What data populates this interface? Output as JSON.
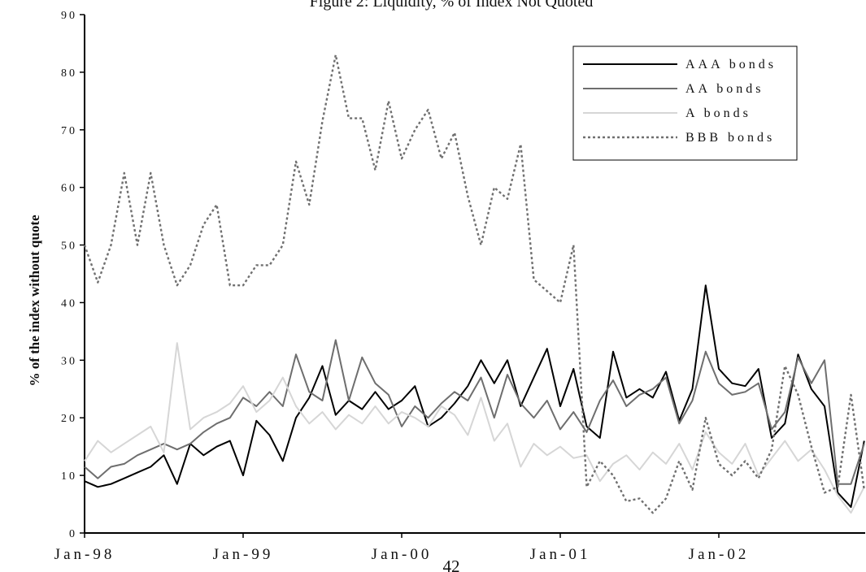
{
  "page_number": "42",
  "colors": {
    "axis": "#000000",
    "aaa": "#000000",
    "aa": "#6e6e6e",
    "a": "#d6d6d6",
    "bbb": "#707070"
  },
  "chart_data": {
    "type": "line",
    "title": "Figure 2: Liquidity, % of Index Not Quoted",
    "ylabel": "% of the index without quote",
    "xlabel": "",
    "ylim": [
      0,
      90
    ],
    "yticks": [
      "0",
      "10",
      "20",
      "30",
      "40",
      "50",
      "60",
      "70",
      "80",
      "90"
    ],
    "x_ticks": [
      "Jan-98",
      "Jan-99",
      "Jan-00",
      "Jan-01",
      "Jan-02"
    ],
    "x_range": [
      "Jan-98",
      "Dec-02"
    ],
    "grid": false,
    "legend_position": "top-right",
    "series": [
      {
        "name": "AAA bonds",
        "style": "solid",
        "points": [
          [
            "Jan-98",
            9
          ],
          [
            "Feb-98",
            8
          ],
          [
            "Mar-98",
            8.5
          ],
          [
            "Apr-98",
            9.5
          ],
          [
            "May-98",
            10.5
          ],
          [
            "Jun-98",
            11.5
          ],
          [
            "Jul-98",
            13.5
          ],
          [
            "Aug-98",
            8.5
          ],
          [
            "Sep-98",
            15.5
          ],
          [
            "Oct-98",
            13.5
          ],
          [
            "Nov-98",
            15
          ],
          [
            "Dec-98",
            16
          ],
          [
            "Jan-99",
            10
          ],
          [
            "Feb-99",
            19.5
          ],
          [
            "Mar-99",
            17
          ],
          [
            "Apr-99",
            12.5
          ],
          [
            "May-99",
            20
          ],
          [
            "Jun-99",
            23.5
          ],
          [
            "Jul-99",
            29
          ],
          [
            "Aug-99",
            20.5
          ],
          [
            "Sep-99",
            23
          ],
          [
            "Oct-99",
            21.5
          ],
          [
            "Nov-99",
            24.5
          ],
          [
            "Dec-99",
            21.5
          ],
          [
            "Jan-00",
            23
          ],
          [
            "Feb-00",
            25.5
          ],
          [
            "Mar-00",
            18.5
          ],
          [
            "Apr-00",
            20
          ],
          [
            "May-00",
            22.5
          ],
          [
            "Jun-00",
            25.5
          ],
          [
            "Jul-00",
            30
          ],
          [
            "Aug-00",
            26
          ],
          [
            "Sep-00",
            30
          ],
          [
            "Oct-00",
            22
          ],
          [
            "Nov-00",
            27
          ],
          [
            "Dec-00",
            32
          ],
          [
            "Jan-01",
            22
          ],
          [
            "Feb-01",
            28.5
          ],
          [
            "Mar-01",
            18.5
          ],
          [
            "Apr-01",
            16.5
          ],
          [
            "May-01",
            31.5
          ],
          [
            "Jun-01",
            23.5
          ],
          [
            "Jul-01",
            25
          ],
          [
            "Aug-01",
            23.5
          ],
          [
            "Sep-01",
            28
          ],
          [
            "Oct-01",
            19.5
          ],
          [
            "Nov-01",
            25
          ],
          [
            "Dec-01",
            43
          ],
          [
            "Jan-02",
            28.5
          ],
          [
            "Feb-02",
            26
          ],
          [
            "Mar-02",
            25.5
          ],
          [
            "Apr-02",
            28.5
          ],
          [
            "May-02",
            16.5
          ],
          [
            "Jun-02",
            19
          ],
          [
            "Jul-02",
            31
          ],
          [
            "Aug-02",
            25
          ],
          [
            "Sep-02",
            22
          ],
          [
            "Oct-02",
            7
          ],
          [
            "Nov-02",
            4.5
          ],
          [
            "Dec-02",
            16
          ]
        ]
      },
      {
        "name": "AA bonds",
        "style": "solid",
        "points": [
          [
            "Jan-98",
            11.5
          ],
          [
            "Feb-98",
            9.5
          ],
          [
            "Mar-98",
            11.5
          ],
          [
            "Apr-98",
            12
          ],
          [
            "May-98",
            13.5
          ],
          [
            "Jun-98",
            14.5
          ],
          [
            "Jul-98",
            15.5
          ],
          [
            "Aug-98",
            14.5
          ],
          [
            "Sep-98",
            15.5
          ],
          [
            "Oct-98",
            17.5
          ],
          [
            "Nov-98",
            19
          ],
          [
            "Dec-98",
            20
          ],
          [
            "Jan-99",
            23.5
          ],
          [
            "Feb-99",
            22
          ],
          [
            "Mar-99",
            24.5
          ],
          [
            "Apr-99",
            22
          ],
          [
            "May-99",
            31
          ],
          [
            "Jun-99",
            24.5
          ],
          [
            "Jul-99",
            23
          ],
          [
            "Aug-99",
            33.5
          ],
          [
            "Sep-99",
            23
          ],
          [
            "Oct-99",
            30.5
          ],
          [
            "Nov-99",
            26
          ],
          [
            "Dec-99",
            24
          ],
          [
            "Jan-00",
            18.5
          ],
          [
            "Feb-00",
            22
          ],
          [
            "Mar-00",
            20
          ],
          [
            "Apr-00",
            22.5
          ],
          [
            "May-00",
            24.5
          ],
          [
            "Jun-00",
            23
          ],
          [
            "Jul-00",
            27
          ],
          [
            "Aug-00",
            20
          ],
          [
            "Sep-00",
            27.5
          ],
          [
            "Oct-00",
            22.5
          ],
          [
            "Nov-00",
            20
          ],
          [
            "Dec-00",
            23
          ],
          [
            "Jan-01",
            18
          ],
          [
            "Feb-01",
            21
          ],
          [
            "Mar-01",
            17.5
          ],
          [
            "Apr-01",
            23
          ],
          [
            "May-01",
            26.5
          ],
          [
            "Jun-01",
            22
          ],
          [
            "Jul-01",
            24
          ],
          [
            "Aug-01",
            25
          ],
          [
            "Sep-01",
            27
          ],
          [
            "Oct-01",
            19
          ],
          [
            "Nov-01",
            23
          ],
          [
            "Dec-01",
            31.5
          ],
          [
            "Jan-02",
            26
          ],
          [
            "Feb-02",
            24
          ],
          [
            "Mar-02",
            24.5
          ],
          [
            "Apr-02",
            26
          ],
          [
            "May-02",
            18
          ],
          [
            "Jun-02",
            21
          ],
          [
            "Jul-02",
            30.5
          ],
          [
            "Aug-02",
            26
          ],
          [
            "Sep-02",
            30
          ],
          [
            "Oct-02",
            8.5
          ],
          [
            "Nov-02",
            8.5
          ],
          [
            "Dec-02",
            15.5
          ]
        ]
      },
      {
        "name": "A bonds",
        "style": "solid",
        "points": [
          [
            "Jan-98",
            12.5
          ],
          [
            "Feb-98",
            16
          ],
          [
            "Mar-98",
            14
          ],
          [
            "Apr-98",
            15.5
          ],
          [
            "May-98",
            17
          ],
          [
            "Jun-98",
            18.5
          ],
          [
            "Jul-98",
            14
          ],
          [
            "Aug-98",
            33
          ],
          [
            "Sep-98",
            18
          ],
          [
            "Oct-98",
            20
          ],
          [
            "Nov-98",
            21
          ],
          [
            "Dec-98",
            22.5
          ],
          [
            "Jan-99",
            25.5
          ],
          [
            "Feb-99",
            21
          ],
          [
            "Mar-99",
            23
          ],
          [
            "Apr-99",
            27
          ],
          [
            "May-99",
            22
          ],
          [
            "Jun-99",
            19
          ],
          [
            "Jul-99",
            21
          ],
          [
            "Aug-99",
            18
          ],
          [
            "Sep-99",
            20.5
          ],
          [
            "Oct-99",
            19
          ],
          [
            "Nov-99",
            22
          ],
          [
            "Dec-99",
            19
          ],
          [
            "Jan-00",
            21
          ],
          [
            "Feb-00",
            20
          ],
          [
            "Mar-00",
            18.5
          ],
          [
            "Apr-00",
            22
          ],
          [
            "May-00",
            20.5
          ],
          [
            "Jun-00",
            17
          ],
          [
            "Jul-00",
            23.5
          ],
          [
            "Aug-00",
            16
          ],
          [
            "Sep-00",
            19
          ],
          [
            "Oct-00",
            11.5
          ],
          [
            "Nov-00",
            15.5
          ],
          [
            "Dec-00",
            13.5
          ],
          [
            "Jan-01",
            15
          ],
          [
            "Feb-01",
            13
          ],
          [
            "Mar-01",
            13.5
          ],
          [
            "Apr-01",
            9
          ],
          [
            "May-01",
            12
          ],
          [
            "Jun-01",
            13.5
          ],
          [
            "Jul-01",
            11
          ],
          [
            "Aug-01",
            14
          ],
          [
            "Sep-01",
            12
          ],
          [
            "Oct-01",
            15.5
          ],
          [
            "Nov-01",
            11
          ],
          [
            "Dec-01",
            17.5
          ],
          [
            "Jan-02",
            14
          ],
          [
            "Feb-02",
            12
          ],
          [
            "Mar-02",
            15.5
          ],
          [
            "Apr-02",
            10
          ],
          [
            "May-02",
            13
          ],
          [
            "Jun-02",
            16
          ],
          [
            "Jul-02",
            12.5
          ],
          [
            "Aug-02",
            14.5
          ],
          [
            "Sep-02",
            11
          ],
          [
            "Oct-02",
            6.5
          ],
          [
            "Nov-02",
            3.5
          ],
          [
            "Dec-02",
            8
          ]
        ]
      },
      {
        "name": "BBB bonds",
        "style": "dashed",
        "points": [
          [
            "Jan-98",
            50
          ],
          [
            "Feb-98",
            43.5
          ],
          [
            "Mar-98",
            50
          ],
          [
            "Apr-98",
            62.5
          ],
          [
            "May-98",
            50
          ],
          [
            "Jun-98",
            62.5
          ],
          [
            "Jul-98",
            50
          ],
          [
            "Aug-98",
            43
          ],
          [
            "Sep-98",
            46.5
          ],
          [
            "Oct-98",
            53.5
          ],
          [
            "Nov-98",
            57
          ],
          [
            "Dec-98",
            43
          ],
          [
            "Jan-99",
            43
          ],
          [
            "Feb-99",
            46.5
          ],
          [
            "Mar-99",
            46.5
          ],
          [
            "Apr-99",
            50
          ],
          [
            "May-99",
            64.5
          ],
          [
            "Jun-99",
            57
          ],
          [
            "Jul-99",
            71.5
          ],
          [
            "Aug-99",
            83
          ],
          [
            "Sep-99",
            72
          ],
          [
            "Oct-99",
            72
          ],
          [
            "Nov-99",
            63
          ],
          [
            "Dec-99",
            75
          ],
          [
            "Jan-00",
            65
          ],
          [
            "Feb-00",
            70
          ],
          [
            "Mar-00",
            73.5
          ],
          [
            "Apr-00",
            65
          ],
          [
            "May-00",
            69.5
          ],
          [
            "Jun-00",
            58.5
          ],
          [
            "Jul-00",
            50
          ],
          [
            "Aug-00",
            60
          ],
          [
            "Sep-00",
            58
          ],
          [
            "Oct-00",
            67.5
          ],
          [
            "Nov-00",
            44
          ],
          [
            "Dec-00",
            42
          ],
          [
            "Jan-01",
            40
          ],
          [
            "Feb-01",
            50
          ],
          [
            "Mar-01",
            8
          ],
          [
            "Apr-01",
            12.5
          ],
          [
            "May-01",
            10
          ],
          [
            "Jun-01",
            5.5
          ],
          [
            "Jul-01",
            6
          ],
          [
            "Aug-01",
            3.5
          ],
          [
            "Sep-01",
            6
          ],
          [
            "Oct-01",
            12.5
          ],
          [
            "Nov-01",
            7.5
          ],
          [
            "Dec-01",
            20
          ],
          [
            "Jan-02",
            12
          ],
          [
            "Feb-02",
            10
          ],
          [
            "Mar-02",
            12.5
          ],
          [
            "Apr-02",
            9.5
          ],
          [
            "May-02",
            14.5
          ],
          [
            "Jun-02",
            29
          ],
          [
            "Jul-02",
            24
          ],
          [
            "Aug-02",
            15
          ],
          [
            "Sep-02",
            7
          ],
          [
            "Oct-02",
            8
          ],
          [
            "Nov-02",
            24
          ],
          [
            "Dec-02",
            7.5
          ]
        ]
      }
    ]
  }
}
